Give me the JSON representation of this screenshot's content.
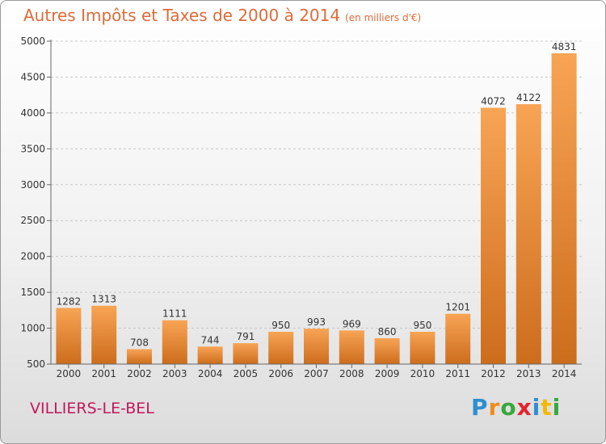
{
  "header": {
    "title": "Autres Impôts et Taxes de 2000 à 2014",
    "subtitle": "(en milliers d'€)"
  },
  "footer": {
    "place": "VILLIERS-LE-BEL",
    "logo_letters": [
      {
        "char": "P",
        "color": "#2d8fd0"
      },
      {
        "char": "r",
        "color": "#f08a1c"
      },
      {
        "char": "o",
        "color": "#36a83c"
      },
      {
        "char": "x",
        "color": "#e4232b"
      },
      {
        "char": "i",
        "color": "#2d8fd0"
      },
      {
        "char": "t",
        "color": "#f5b800"
      },
      {
        "char": "i",
        "color": "#36a83c"
      }
    ]
  },
  "colors": {
    "bar_top": "#f8a455",
    "bar_bottom": "#cc6d1c",
    "axis": "#666666",
    "grid": "#c8c8c8",
    "title": "#dd6b3a",
    "place": "#c2185b"
  },
  "chart_data": {
    "type": "bar",
    "categories": [
      "2000",
      "2001",
      "2002",
      "2003",
      "2004",
      "2005",
      "2006",
      "2007",
      "2008",
      "2009",
      "2010",
      "2011",
      "2012",
      "2013",
      "2014"
    ],
    "values": [
      1282,
      1313,
      708,
      1111,
      744,
      791,
      950,
      993,
      969,
      860,
      950,
      1201,
      4072,
      4122,
      4831
    ],
    "ylim": [
      500,
      5000
    ],
    "yticks": [
      500,
      1000,
      1500,
      2000,
      2500,
      3000,
      3500,
      4000,
      4500,
      5000
    ],
    "grid": true,
    "legend": "none"
  }
}
